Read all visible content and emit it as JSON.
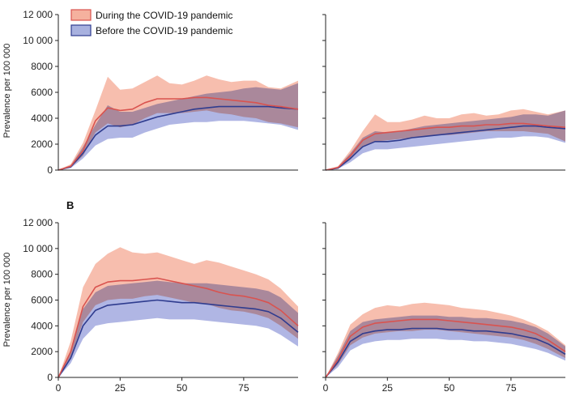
{
  "legend": {
    "items": [
      {
        "label": "During the COVID-19 pandemic",
        "fill": "#f4a893",
        "border": "#d9534f"
      },
      {
        "label": "Before the COVID-19 pandemic",
        "fill": "#9ea8dc",
        "border": "#2f3c8f"
      }
    ]
  },
  "panel_letter_b": "B",
  "y_axis_label": "Prevalence per 100 000",
  "colors": {
    "during_band": "#f4a893",
    "during_line": "#d9534f",
    "before_band": "#8e97d8",
    "before_line": "#2f3c8f",
    "axis": "#222222"
  },
  "chart_data": [
    {
      "type": "area",
      "panel": "A-left",
      "xlim": [
        0,
        97
      ],
      "ylim": [
        0,
        12000
      ],
      "x_ticks": [],
      "y_ticks": [
        0,
        2000,
        4000,
        6000,
        8000,
        10000,
        12000
      ],
      "y_tick_labels": [
        "0",
        "2000",
        "4000",
        "6000",
        "8000",
        "10 000",
        "12 000"
      ],
      "ylabel": "Prevalence per 100 000",
      "x": [
        0,
        5,
        10,
        15,
        20,
        25,
        30,
        35,
        40,
        45,
        50,
        55,
        60,
        65,
        70,
        75,
        80,
        85,
        90,
        97
      ],
      "series": [
        {
          "name": "During the COVID-19 pandemic",
          "mean": [
            0,
            300,
            1500,
            3800,
            4800,
            4600,
            4700,
            5200,
            5500,
            5500,
            5500,
            5600,
            5600,
            5500,
            5400,
            5300,
            5200,
            5000,
            4900,
            4700
          ],
          "lower": [
            0,
            200,
            1100,
            2900,
            3600,
            3300,
            3500,
            4000,
            4400,
            4400,
            4400,
            4500,
            4600,
            4400,
            4300,
            4100,
            4000,
            3700,
            3600,
            3300
          ],
          "upper": [
            0,
            450,
            2100,
            4600,
            7200,
            6200,
            6300,
            6800,
            7300,
            6700,
            6600,
            6900,
            7300,
            7000,
            6800,
            6900,
            6900,
            6400,
            6300,
            6900
          ]
        },
        {
          "name": "Before the COVID-19 pandemic",
          "mean": [
            0,
            250,
            1300,
            2700,
            3400,
            3400,
            3500,
            3800,
            4100,
            4300,
            4500,
            4700,
            4800,
            4900,
            4900,
            4900,
            4900,
            4900,
            4800,
            4700
          ],
          "lower": [
            0,
            150,
            900,
            1900,
            2400,
            2500,
            2500,
            2900,
            3200,
            3500,
            3600,
            3700,
            3700,
            3800,
            3800,
            3800,
            3700,
            3600,
            3500,
            3100
          ],
          "upper": [
            0,
            350,
            1800,
            3500,
            5000,
            4500,
            4500,
            4800,
            5100,
            5300,
            5500,
            5700,
            5900,
            6000,
            6100,
            6300,
            6400,
            6300,
            6200,
            6700
          ]
        }
      ]
    },
    {
      "type": "area",
      "panel": "A-right",
      "xlim": [
        0,
        97
      ],
      "ylim": [
        0,
        12000
      ],
      "x_ticks": [],
      "y_ticks": [
        0,
        2000,
        4000,
        6000,
        8000,
        10000,
        12000
      ],
      "y_tick_labels": [],
      "x": [
        0,
        5,
        10,
        15,
        20,
        25,
        30,
        35,
        40,
        45,
        50,
        55,
        60,
        65,
        70,
        75,
        80,
        85,
        90,
        97
      ],
      "series": [
        {
          "name": "During the COVID-19 pandemic",
          "mean": [
            0,
            200,
            1100,
            2300,
            2800,
            2900,
            3000,
            3100,
            3200,
            3300,
            3300,
            3400,
            3400,
            3500,
            3500,
            3600,
            3600,
            3500,
            3400,
            3300
          ],
          "lower": [
            0,
            150,
            800,
            1800,
            2200,
            2300,
            2400,
            2500,
            2600,
            2700,
            2700,
            2800,
            2900,
            3000,
            3000,
            3000,
            3000,
            2900,
            2800,
            2200
          ],
          "upper": [
            0,
            300,
            1500,
            3000,
            4300,
            3700,
            3700,
            3900,
            4200,
            4000,
            4000,
            4300,
            4400,
            4200,
            4300,
            4600,
            4700,
            4500,
            4300,
            4600
          ]
        },
        {
          "name": "Before the COVID-19 pandemic",
          "mean": [
            0,
            150,
            900,
            1800,
            2200,
            2200,
            2300,
            2500,
            2600,
            2700,
            2800,
            2900,
            3000,
            3100,
            3200,
            3300,
            3400,
            3400,
            3300,
            3200
          ],
          "lower": [
            0,
            100,
            600,
            1300,
            1600,
            1600,
            1700,
            1800,
            1900,
            2000,
            2100,
            2200,
            2300,
            2400,
            2500,
            2500,
            2600,
            2600,
            2500,
            2100
          ],
          "upper": [
            0,
            250,
            1300,
            2500,
            3000,
            2900,
            3000,
            3200,
            3400,
            3500,
            3600,
            3700,
            3800,
            3900,
            4000,
            4100,
            4300,
            4300,
            4200,
            4600
          ]
        }
      ]
    },
    {
      "type": "area",
      "panel": "B-left",
      "xlim": [
        0,
        97
      ],
      "ylim": [
        0,
        12000
      ],
      "x_ticks": [
        0,
        25,
        50,
        75
      ],
      "x_tick_labels": [
        "0",
        "25",
        "50",
        "75"
      ],
      "y_ticks": [
        0,
        2000,
        4000,
        6000,
        8000,
        10000,
        12000
      ],
      "y_tick_labels": [
        "0",
        "2000",
        "4000",
        "6000",
        "8000",
        "10 000",
        "12 000"
      ],
      "ylabel": "Prevalence per 100 000",
      "x": [
        0,
        5,
        10,
        15,
        20,
        25,
        30,
        35,
        40,
        45,
        50,
        55,
        60,
        65,
        70,
        75,
        80,
        85,
        90,
        97
      ],
      "series": [
        {
          "name": "During the COVID-19 pandemic",
          "mean": [
            0,
            2000,
            5500,
            7000,
            7400,
            7500,
            7500,
            7600,
            7700,
            7500,
            7300,
            7100,
            6900,
            6600,
            6400,
            6300,
            6100,
            5800,
            5200,
            4000
          ],
          "lower": [
            0,
            1500,
            4300,
            5600,
            6000,
            6100,
            6100,
            6300,
            6400,
            6200,
            6000,
            5800,
            5700,
            5400,
            5200,
            5100,
            4900,
            4600,
            4000,
            3000
          ],
          "upper": [
            0,
            2800,
            7000,
            8800,
            9600,
            10100,
            9700,
            9600,
            9700,
            9400,
            9100,
            8800,
            9100,
            8900,
            8600,
            8300,
            8000,
            7600,
            6900,
            5500
          ]
        },
        {
          "name": "Before the COVID-19 pandemic",
          "mean": [
            0,
            1500,
            4000,
            5200,
            5600,
            5700,
            5800,
            5900,
            6000,
            5900,
            5800,
            5800,
            5700,
            5600,
            5500,
            5400,
            5300,
            5100,
            4600,
            3500
          ],
          "lower": [
            0,
            1100,
            3000,
            4000,
            4200,
            4300,
            4400,
            4500,
            4600,
            4500,
            4500,
            4500,
            4400,
            4300,
            4200,
            4100,
            4000,
            3800,
            3300,
            2400
          ],
          "upper": [
            0,
            2100,
            5300,
            6600,
            7100,
            7200,
            7300,
            7400,
            7500,
            7400,
            7300,
            7300,
            7300,
            7200,
            7100,
            7000,
            6900,
            6700,
            6200,
            5000
          ]
        }
      ]
    },
    {
      "type": "area",
      "panel": "B-right",
      "xlim": [
        0,
        97
      ],
      "ylim": [
        0,
        12000
      ],
      "x_ticks": [
        0,
        25,
        50,
        75
      ],
      "x_tick_labels": [
        "0",
        "25",
        "50",
        "75"
      ],
      "y_ticks": [
        0,
        2000,
        4000,
        6000,
        8000,
        10000,
        12000
      ],
      "y_tick_labels": [],
      "x": [
        0,
        5,
        10,
        15,
        20,
        25,
        30,
        35,
        40,
        45,
        50,
        55,
        60,
        65,
        70,
        75,
        80,
        85,
        90,
        97
      ],
      "series": [
        {
          "name": "During the COVID-19 pandemic",
          "mean": [
            0,
            1400,
            3200,
            3900,
            4200,
            4300,
            4400,
            4500,
            4500,
            4500,
            4400,
            4300,
            4200,
            4100,
            4000,
            3900,
            3700,
            3400,
            2900,
            2000
          ],
          "lower": [
            0,
            1000,
            2500,
            3100,
            3400,
            3500,
            3600,
            3600,
            3700,
            3700,
            3600,
            3500,
            3400,
            3300,
            3200,
            3100,
            2900,
            2600,
            2200,
            1500
          ],
          "upper": [
            0,
            1900,
            4100,
            4900,
            5400,
            5600,
            5500,
            5700,
            5800,
            5700,
            5600,
            5400,
            5300,
            5200,
            5000,
            4800,
            4500,
            4100,
            3600,
            2500
          ]
        },
        {
          "name": "Before the COVID-19 pandemic",
          "mean": [
            0,
            1200,
            2800,
            3400,
            3600,
            3700,
            3700,
            3800,
            3800,
            3800,
            3700,
            3700,
            3600,
            3600,
            3500,
            3400,
            3200,
            3000,
            2600,
            1800
          ],
          "lower": [
            0,
            800,
            2100,
            2600,
            2800,
            2900,
            2900,
            3000,
            3000,
            3000,
            2900,
            2900,
            2800,
            2800,
            2700,
            2600,
            2400,
            2200,
            1900,
            1300
          ],
          "upper": [
            0,
            1700,
            3600,
            4300,
            4500,
            4600,
            4700,
            4800,
            4800,
            4800,
            4700,
            4700,
            4600,
            4600,
            4500,
            4400,
            4200,
            3900,
            3400,
            2400
          ]
        }
      ]
    }
  ]
}
